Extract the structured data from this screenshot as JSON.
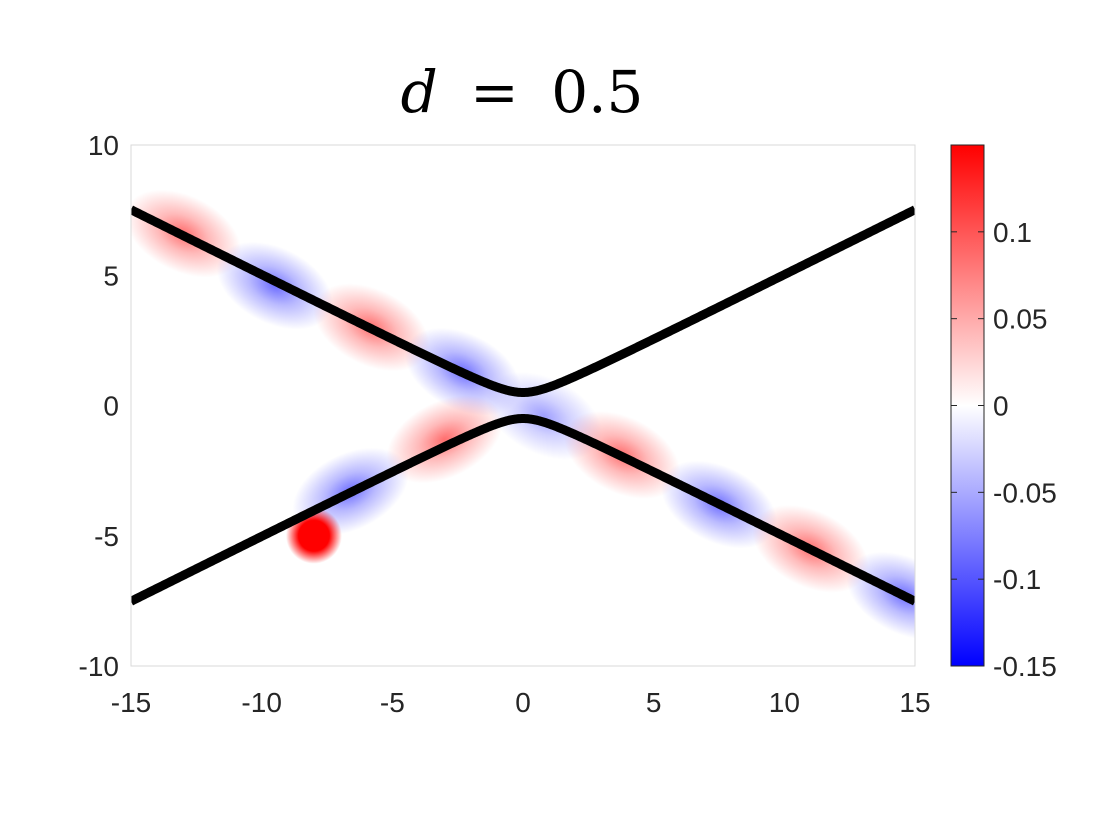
{
  "chart_data": {
    "type": "heatmap",
    "title": "d = 0.5",
    "title_parts": {
      "var": "d",
      "op": "=",
      "val": "0.5"
    },
    "xlim": [
      -15,
      15
    ],
    "ylim": [
      -10,
      10
    ],
    "xticks": [
      -15,
      -10,
      -5,
      0,
      5,
      10,
      15
    ],
    "yticks": [
      -10,
      -5,
      0,
      5,
      10
    ],
    "colorbar": {
      "colormap": "blue-white-red",
      "clim": [
        -0.15,
        0.15
      ],
      "ticks": [
        -0.15,
        -0.1,
        -0.05,
        0,
        0.05,
        0.1
      ],
      "tick_labels": [
        "-0.15",
        "-0.1",
        "-0.05",
        "0",
        "0.05",
        "0.1"
      ],
      "low_color": "#0000ff",
      "mid_color": "#ffffff",
      "high_color": "#ff0000"
    },
    "curves": {
      "description": "hyperbola y = ±sqrt((x/2)^2 + d^2)",
      "d": 0.5,
      "slope": 0.5,
      "color": "#000000",
      "branches": [
        "upper",
        "lower"
      ]
    },
    "blobs": [
      {
        "x": -13.0,
        "y": 6.6,
        "amp": 0.09
      },
      {
        "x": -9.5,
        "y": 4.6,
        "amp": -0.09
      },
      {
        "x": -5.8,
        "y": 3.0,
        "amp": 0.09
      },
      {
        "x": -2.3,
        "y": 1.3,
        "amp": -0.09
      },
      {
        "x": 0.8,
        "y": -0.4,
        "amp": -0.06
      },
      {
        "x": 3.8,
        "y": -1.9,
        "amp": 0.09
      },
      {
        "x": 7.5,
        "y": -3.8,
        "amp": -0.09
      },
      {
        "x": 11.0,
        "y": -5.5,
        "amp": 0.09
      },
      {
        "x": 14.6,
        "y": -7.3,
        "amp": -0.09
      },
      {
        "x": -3.0,
        "y": -1.3,
        "amp": 0.09
      },
      {
        "x": -6.6,
        "y": -3.3,
        "amp": -0.09
      },
      {
        "x": -8.0,
        "y": -5.0,
        "amp": 0.15,
        "point_source": true
      }
    ]
  }
}
